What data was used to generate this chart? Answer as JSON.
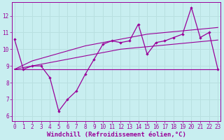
{
  "bg_color": "#c8eef0",
  "grid_color": "#b8dfe0",
  "line_color": "#990099",
  "x_ticks": [
    0,
    1,
    2,
    3,
    4,
    5,
    6,
    7,
    8,
    9,
    10,
    11,
    12,
    13,
    14,
    15,
    16,
    17,
    18,
    19,
    20,
    21,
    22,
    23
  ],
  "y_ticks": [
    6,
    7,
    8,
    9,
    10,
    11,
    12
  ],
  "ylim": [
    5.7,
    12.8
  ],
  "xlim": [
    -0.3,
    23.3
  ],
  "line1_y": [
    10.6,
    8.8,
    9.0,
    9.0,
    8.3,
    6.3,
    7.0,
    7.5,
    8.5,
    9.4,
    10.3,
    10.5,
    10.4,
    10.5,
    11.5,
    9.7,
    10.4,
    10.5,
    10.7,
    10.9,
    12.5,
    10.7,
    11.0,
    8.8
  ],
  "line2_y": [
    8.8,
    8.8,
    8.8,
    8.8,
    8.8,
    8.8,
    8.8,
    8.8,
    8.8,
    8.8,
    8.8,
    8.8,
    8.8,
    8.8,
    8.8,
    8.8,
    8.8,
    8.8,
    8.8,
    8.8,
    8.8,
    8.8,
    8.8,
    8.8
  ],
  "line3_y": [
    8.8,
    8.9,
    9.0,
    9.1,
    9.2,
    9.3,
    9.4,
    9.5,
    9.6,
    9.7,
    9.8,
    9.9,
    10.0,
    10.05,
    10.1,
    10.15,
    10.2,
    10.25,
    10.3,
    10.35,
    10.4,
    10.45,
    10.5,
    10.55
  ],
  "line4_y": [
    8.8,
    9.05,
    9.3,
    9.45,
    9.6,
    9.75,
    9.9,
    10.05,
    10.2,
    10.3,
    10.4,
    10.5,
    10.6,
    10.7,
    10.8,
    10.9,
    10.95,
    11.0,
    11.05,
    11.1,
    11.15,
    11.2,
    11.25,
    11.3
  ],
  "tick_fontsize": 5.5,
  "xlabel_fontsize": 6.5,
  "xlabel": "Windchill (Refroidissement éolien,°C)"
}
